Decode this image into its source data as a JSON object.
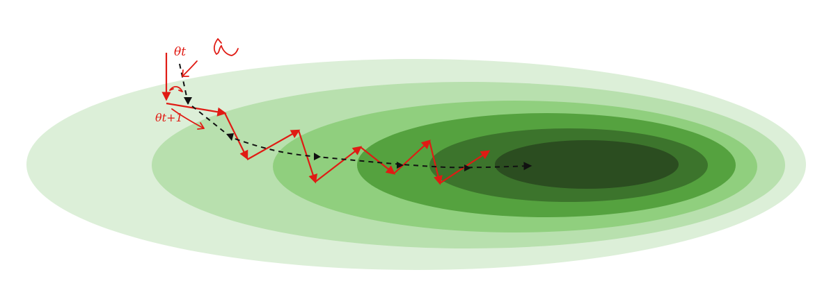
{
  "labels": {
    "theta_t": "θt",
    "theta_t1": "θt+1"
  },
  "colors": {
    "background": "#ffffff",
    "contour_levels": [
      "#dcefd8",
      "#b8e0ae",
      "#90cf7e",
      "#55a23f",
      "#3c742c",
      "#2b4d20"
    ],
    "sgd_path": "#e01b14",
    "momentum_path": "#111111"
  },
  "icons": {
    "annotation_mark": "hand-drawn-red-scribble"
  }
}
